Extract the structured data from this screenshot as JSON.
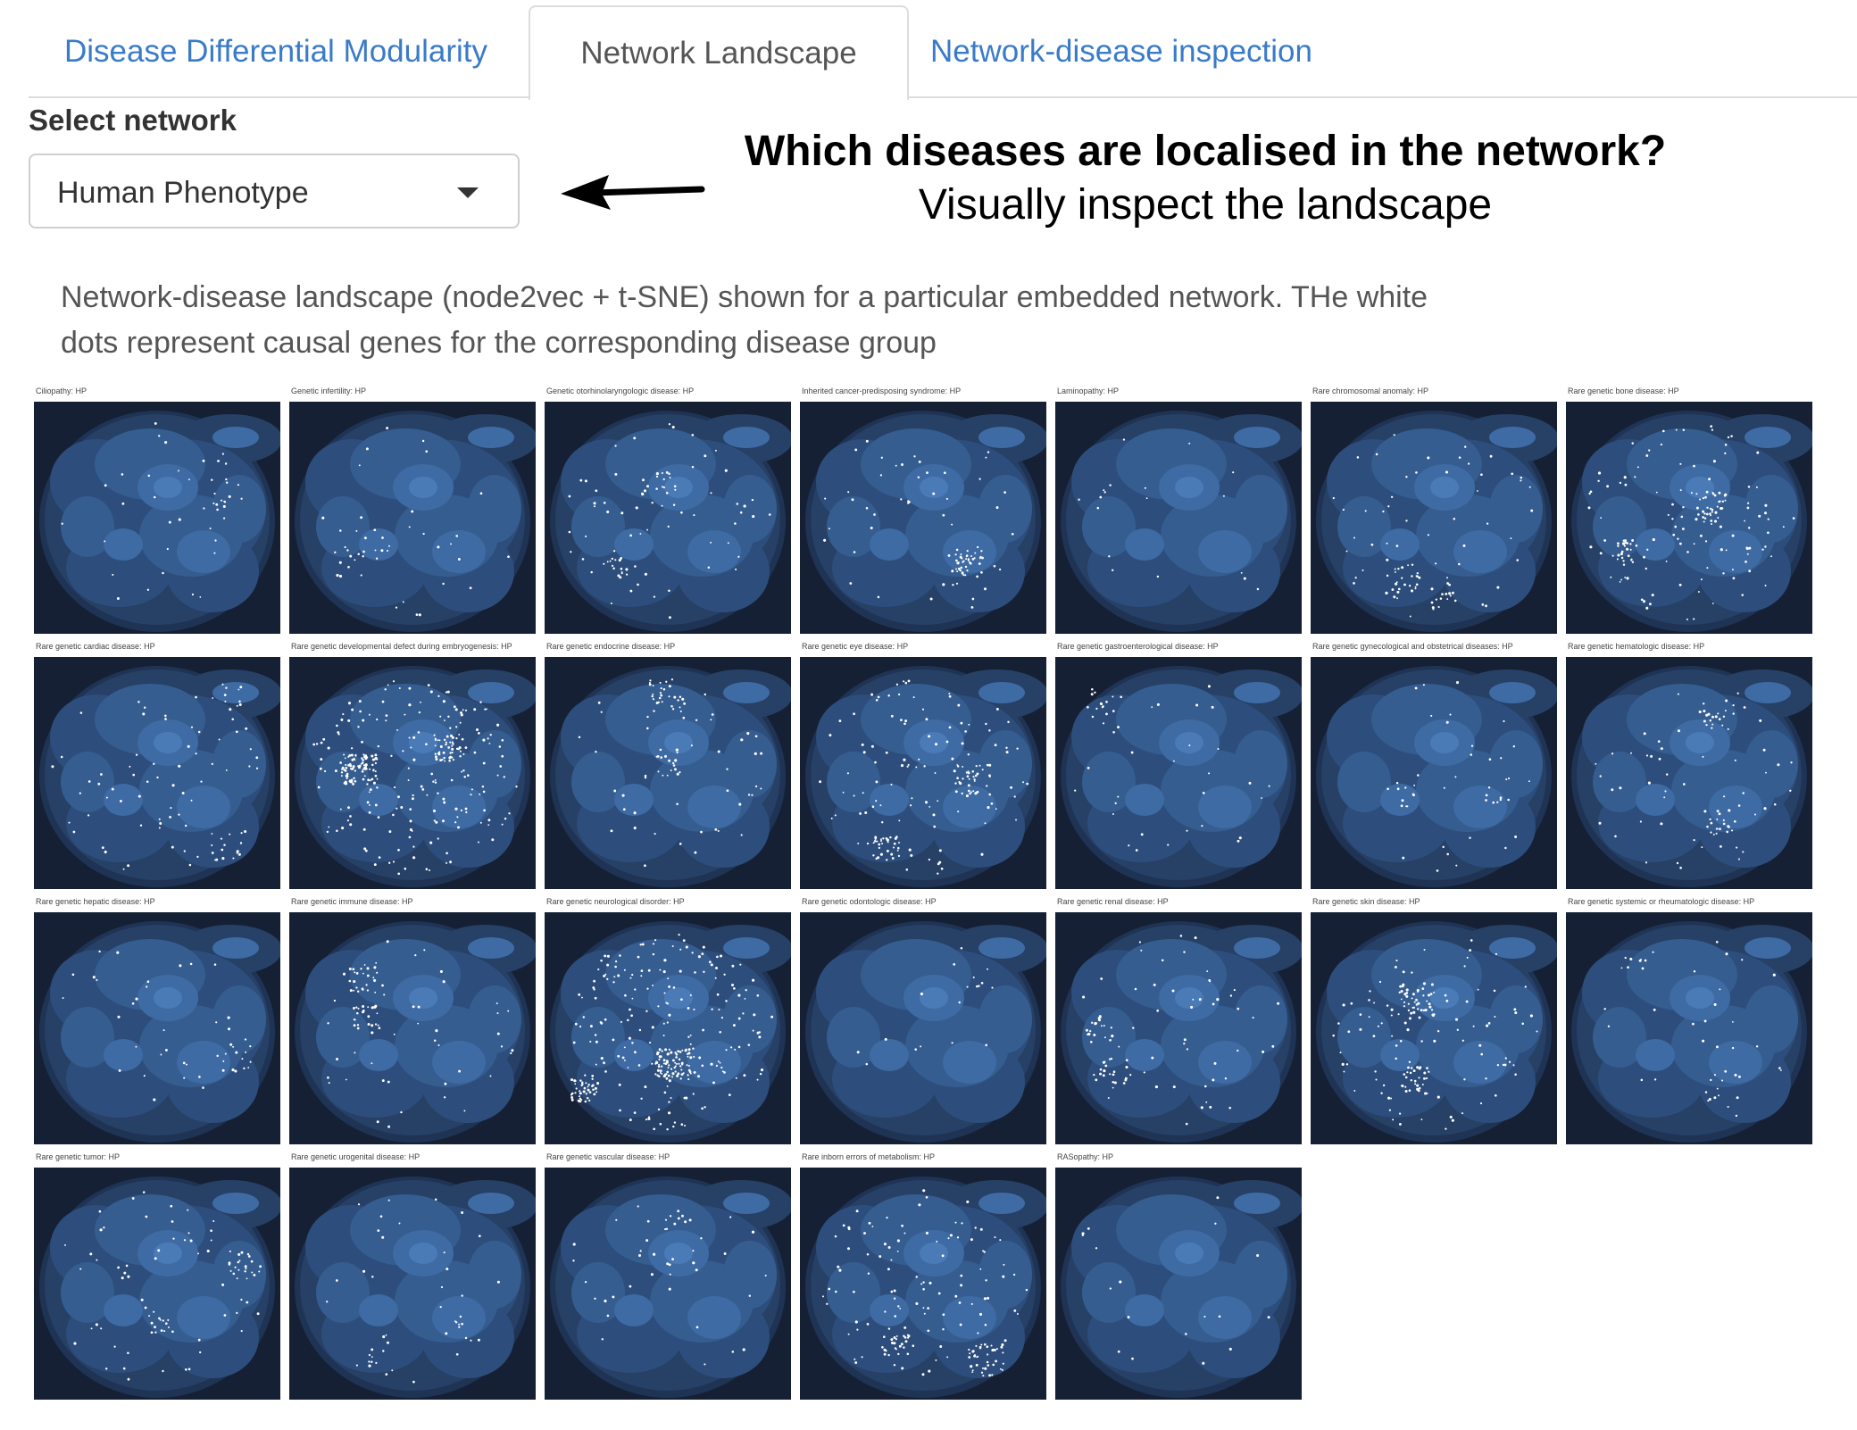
{
  "tabs": [
    {
      "label": "Disease Differential Modularity",
      "active": false
    },
    {
      "label": "Network Landscape",
      "active": true
    },
    {
      "label": "Network-disease inspection",
      "active": false
    }
  ],
  "select": {
    "label": "Select network",
    "value": "Human Phenotype"
  },
  "callout": {
    "title": "Which diseases are localised in the network?",
    "subtitle": "Visually inspect the landscape"
  },
  "description": "Network-disease landscape (node2vec + t-SNE) shown for a particular embedded network. THe white dots represent causal genes for the corresponding disease group",
  "colors": {
    "panel_background": "#152035",
    "density_levels": [
      "#1f3354",
      "#264066",
      "#2d4e7c",
      "#355d90",
      "#3e6ba4",
      "#4a7bb7"
    ],
    "gene_dot": "#ffffff",
    "tab_link": "#3a7bc8"
  },
  "panels": [
    {
      "title": "Ciliopathy: HP",
      "density": "low"
    },
    {
      "title": "Genetic infertility: HP",
      "density": "low"
    },
    {
      "title": "Genetic otorhinolaryngologic disease: HP",
      "density": "medium"
    },
    {
      "title": "Inherited cancer-predisposing syndrome: HP",
      "density": "medium"
    },
    {
      "title": "Laminopathy: HP",
      "density": "very-low"
    },
    {
      "title": "Rare chromosomal anomaly: HP",
      "density": "medium"
    },
    {
      "title": "Rare genetic bone disease: HP",
      "density": "high"
    },
    {
      "title": "Rare genetic cardiac disease: HP",
      "density": "medium"
    },
    {
      "title": "Rare genetic developmental defect during embryogenesis: HP",
      "density": "very-high"
    },
    {
      "title": "Rare genetic endocrine disease: HP",
      "density": "medium"
    },
    {
      "title": "Rare genetic eye disease: HP",
      "density": "high"
    },
    {
      "title": "Rare genetic gastroenterological disease: HP",
      "density": "low"
    },
    {
      "title": "Rare genetic gynecological and obstetrical diseases: HP",
      "density": "low"
    },
    {
      "title": "Rare genetic hematologic disease: HP",
      "density": "medium"
    },
    {
      "title": "Rare genetic hepatic disease: HP",
      "density": "low"
    },
    {
      "title": "Rare genetic immune disease: HP",
      "density": "medium"
    },
    {
      "title": "Rare genetic neurological disorder: HP",
      "density": "very-high"
    },
    {
      "title": "Rare genetic odontologic disease: HP",
      "density": "very-low"
    },
    {
      "title": "Rare genetic renal disease: HP",
      "density": "medium"
    },
    {
      "title": "Rare genetic skin disease: HP",
      "density": "high"
    },
    {
      "title": "Rare genetic systemic or rheumatologic disease: HP",
      "density": "low"
    },
    {
      "title": "Rare genetic tumor: HP",
      "density": "medium"
    },
    {
      "title": "Rare genetic urogenital disease: HP",
      "density": "low"
    },
    {
      "title": "Rare genetic vascular disease: HP",
      "density": "low"
    },
    {
      "title": "Rare inborn errors of metabolism: HP",
      "density": "high"
    },
    {
      "title": "RASopathy: HP",
      "density": "very-low"
    }
  ]
}
